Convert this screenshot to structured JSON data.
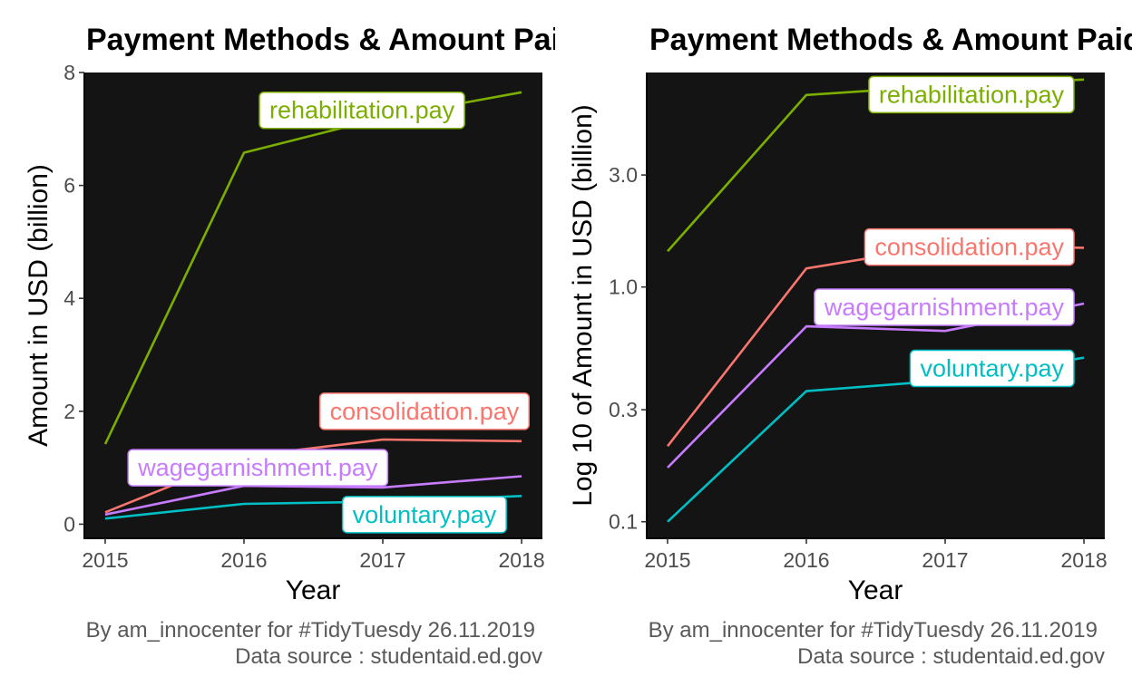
{
  "chart_data": [
    {
      "type": "line",
      "title": "Payment Methods & Amount Paid",
      "xlabel": "Year",
      "ylabel": "Amount in USD (billion)",
      "y_scale": "linear",
      "x": [
        2015,
        2016,
        2017,
        2018
      ],
      "x_ticks": [
        "2015",
        "2016",
        "2017",
        "2018"
      ],
      "y_ticks": [
        "0",
        "2",
        "4",
        "6",
        "8"
      ],
      "ylim": [
        -0.25,
        8
      ],
      "xlim": [
        2014.85,
        2018.15
      ],
      "background": "#141414",
      "series": [
        {
          "name": "rehabilitation.pay",
          "color": "#7CAE00",
          "values": [
            1.42,
            6.58,
            7.2,
            7.65
          ],
          "label_year": 2016.85,
          "label_value": 7.33,
          "label_align": "middle"
        },
        {
          "name": "consolidation.pay",
          "color": "#F8766D",
          "values": [
            0.21,
            1.2,
            1.5,
            1.47
          ],
          "label_year": 2017.3,
          "label_value": 2.0,
          "label_align": "middle"
        },
        {
          "name": "wagegarnishment.pay",
          "color": "#C77CFF",
          "values": [
            0.17,
            0.68,
            0.65,
            0.85
          ],
          "label_year": 2016.1,
          "label_value": 1.0,
          "label_align": "middle"
        },
        {
          "name": "voluntary.pay",
          "color": "#00BFC4",
          "values": [
            0.1,
            0.36,
            0.4,
            0.5
          ],
          "label_year": 2017.3,
          "label_value": 0.17,
          "label_align": "middle"
        }
      ],
      "caption": [
        "By am_innocenter for #TidyTuesdy 26.11.2019",
        "Data source : studentaid.ed.gov"
      ]
    },
    {
      "type": "line",
      "title": "Payment Methods & Amount Paid",
      "xlabel": "Year",
      "ylabel": "Log 10 of Amount in USD (billion)",
      "y_scale": "log10",
      "x": [
        2015,
        2016,
        2017,
        2018
      ],
      "x_ticks": [
        "2015",
        "2016",
        "2017",
        "2018"
      ],
      "y_ticks": [
        0.1,
        0.3,
        1.0,
        3.0
      ],
      "y_tick_labels": [
        "0.1",
        "0.3",
        "1.0",
        "3.0"
      ],
      "ylim": [
        0.085,
        8.2
      ],
      "xlim": [
        2014.85,
        2018.15
      ],
      "background": "#141414",
      "series": [
        {
          "name": "rehabilitation.pay",
          "color": "#7CAE00",
          "values": [
            1.42,
            6.58,
            7.2,
            7.65
          ],
          "label_year": 2018.0,
          "label_value": 6.6,
          "label_align": "end"
        },
        {
          "name": "consolidation.pay",
          "color": "#F8766D",
          "values": [
            0.21,
            1.2,
            1.5,
            1.47
          ],
          "label_year": 2018.0,
          "label_value": 1.48,
          "label_align": "end"
        },
        {
          "name": "wagegarnishment.pay",
          "color": "#C77CFF",
          "values": [
            0.17,
            0.68,
            0.65,
            0.85
          ],
          "label_year": 2018.0,
          "label_value": 0.82,
          "label_align": "end"
        },
        {
          "name": "voluntary.pay",
          "color": "#00BFC4",
          "values": [
            0.1,
            0.36,
            0.4,
            0.5
          ],
          "label_year": 2018.0,
          "label_value": 0.45,
          "label_align": "end"
        }
      ],
      "caption": [
        "By am_innocenter for #TidyTuesdy 26.11.2019",
        "Data source : studentaid.ed.gov"
      ]
    }
  ]
}
